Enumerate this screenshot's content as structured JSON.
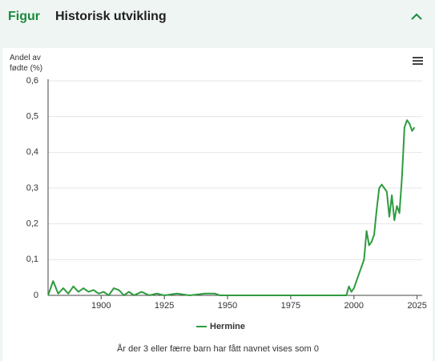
{
  "header": {
    "label": "Figur",
    "title": "Historisk utvikling"
  },
  "chart_data": {
    "type": "line",
    "y_label": "Andel av fødte (%)",
    "x": [
      1879,
      1881,
      1883,
      1885,
      1887,
      1889,
      1891,
      1893,
      1895,
      1897,
      1899,
      1901,
      1903,
      1905,
      1907,
      1909,
      1911,
      1913,
      1916,
      1919,
      1922,
      1925,
      1930,
      1935,
      1941,
      1945,
      1947,
      1997,
      1998,
      1999,
      2000,
      2002,
      2004,
      2005,
      2006,
      2007,
      2008,
      2009,
      2010,
      2011,
      2012,
      2013,
      2014,
      2015,
      2016,
      2017,
      2018,
      2019,
      2020,
      2021,
      2022,
      2023,
      2024
    ],
    "series": [
      {
        "name": "Hermine",
        "color": "#2e9b3e",
        "values": [
          0,
          0.04,
          0.005,
          0.02,
          0.005,
          0.025,
          0.01,
          0.02,
          0.01,
          0.015,
          0.005,
          0.01,
          0,
          0.02,
          0.015,
          0,
          0.01,
          0,
          0.01,
          0,
          0.005,
          0,
          0.005,
          0,
          0.005,
          0.005,
          0,
          0,
          0.025,
          0.01,
          0.02,
          0.06,
          0.1,
          0.18,
          0.14,
          0.15,
          0.17,
          0.24,
          0.3,
          0.31,
          0.3,
          0.29,
          0.22,
          0.28,
          0.21,
          0.25,
          0.23,
          0.33,
          0.47,
          0.49,
          0.48,
          0.46,
          0.47
        ]
      }
    ],
    "xlim": [
      1879,
      2027
    ],
    "xticks": [
      1900,
      1925,
      1950,
      1975,
      2000,
      2025
    ],
    "ylim": [
      0,
      0.6
    ],
    "yticks": [
      0,
      {
        "value": 0.1,
        "label": "0,1"
      },
      {
        "value": 0.2,
        "label": "0,2"
      },
      {
        "value": 0.3,
        "label": "0,3"
      },
      {
        "value": 0.4,
        "label": "0,4"
      },
      {
        "value": 0.5,
        "label": "0,5"
      },
      {
        "value": 0.6,
        "label": "0,6"
      }
    ],
    "grid": true,
    "caption": "År der 3 eller færre barn har fått navnet vises som 0"
  }
}
